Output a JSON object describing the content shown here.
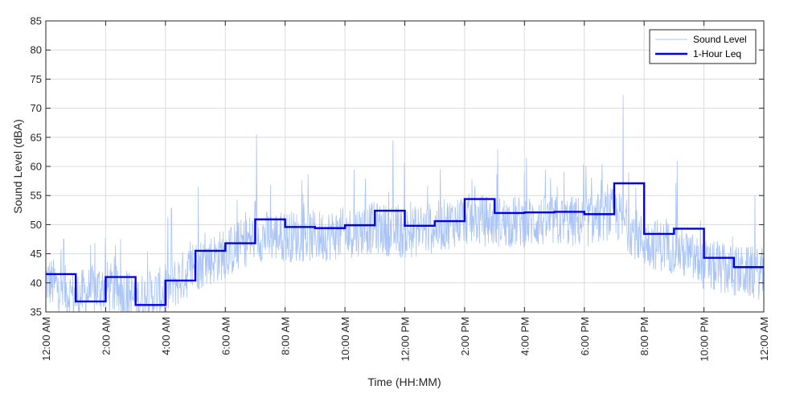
{
  "chart_data": {
    "type": "line",
    "xlabel": "Time (HH:MM)",
    "ylabel": "Sound Level (dBA)",
    "ylim": [
      35,
      85
    ],
    "xlim": [
      0,
      24
    ],
    "x_unit": "hours",
    "yticks": [
      35,
      40,
      45,
      50,
      55,
      60,
      65,
      70,
      75,
      80,
      85
    ],
    "xticks": [
      {
        "hour": 0,
        "label": "12:00 AM"
      },
      {
        "hour": 2,
        "label": "2:00 AM"
      },
      {
        "hour": 4,
        "label": "4:00 AM"
      },
      {
        "hour": 6,
        "label": "6:00 AM"
      },
      {
        "hour": 8,
        "label": "8:00 AM"
      },
      {
        "hour": 10,
        "label": "10:00 AM"
      },
      {
        "hour": 12,
        "label": "12:00 PM"
      },
      {
        "hour": 14,
        "label": "2:00 PM"
      },
      {
        "hour": 16,
        "label": "4:00 PM"
      },
      {
        "hour": 18,
        "label": "6:00 PM"
      },
      {
        "hour": 20,
        "label": "8:00 PM"
      },
      {
        "hour": 22,
        "label": "10:00 PM"
      },
      {
        "hour": 24,
        "label": "12:00 AM"
      }
    ],
    "grid": true,
    "legend_position": "top-right",
    "series": [
      {
        "name": "Sound Level",
        "style": "thin-noisy-line",
        "color": "#a9c4f5",
        "baseline": [
          {
            "hour": 0,
            "level": 40.5
          },
          {
            "hour": 1,
            "level": 37.5
          },
          {
            "hour": 2,
            "level": 39.5
          },
          {
            "hour": 3,
            "level": 37
          },
          {
            "hour": 4,
            "level": 38.5
          },
          {
            "hour": 5,
            "level": 43
          },
          {
            "hour": 6,
            "level": 45
          },
          {
            "hour": 7,
            "level": 48
          },
          {
            "hour": 8,
            "level": 48
          },
          {
            "hour": 9,
            "level": 48
          },
          {
            "hour": 10,
            "level": 48.5
          },
          {
            "hour": 11,
            "level": 49.5
          },
          {
            "hour": 12,
            "level": 48.5
          },
          {
            "hour": 13,
            "level": 49.5
          },
          {
            "hour": 14,
            "level": 51
          },
          {
            "hour": 15,
            "level": 50.5
          },
          {
            "hour": 16,
            "level": 50.5
          },
          {
            "hour": 17,
            "level": 50.5
          },
          {
            "hour": 18,
            "level": 50.5
          },
          {
            "hour": 19,
            "level": 52
          },
          {
            "hour": 20,
            "level": 47
          },
          {
            "hour": 21,
            "level": 46
          },
          {
            "hour": 22,
            "level": 43
          },
          {
            "hour": 23,
            "level": 42
          },
          {
            "hour": 24,
            "level": 41.5
          }
        ],
        "peaks": [
          {
            "hour": 0.6,
            "level": 47.5
          },
          {
            "hour": 2.5,
            "level": 47.5
          },
          {
            "hour": 4.2,
            "level": 52.8
          },
          {
            "hour": 5.1,
            "level": 56.5
          },
          {
            "hour": 7.05,
            "level": 65.5
          },
          {
            "hour": 10.3,
            "level": 59.5
          },
          {
            "hour": 11.6,
            "level": 64.5
          },
          {
            "hour": 15.1,
            "level": 63
          },
          {
            "hour": 16.0,
            "level": 59
          },
          {
            "hour": 19.3,
            "level": 72.3
          },
          {
            "hour": 21.1,
            "level": 61
          }
        ]
      },
      {
        "name": "1-Hour Leq",
        "style": "step",
        "color": "#0000ee",
        "values": [
          41.5,
          36.8,
          41.0,
          36.2,
          40.4,
          45.5,
          46.8,
          50.9,
          49.6,
          49.4,
          49.9,
          52.4,
          49.8,
          50.6,
          54.4,
          52.0,
          52.1,
          52.2,
          51.8,
          57.1,
          48.4,
          49.3,
          44.3,
          42.7
        ]
      }
    ]
  }
}
